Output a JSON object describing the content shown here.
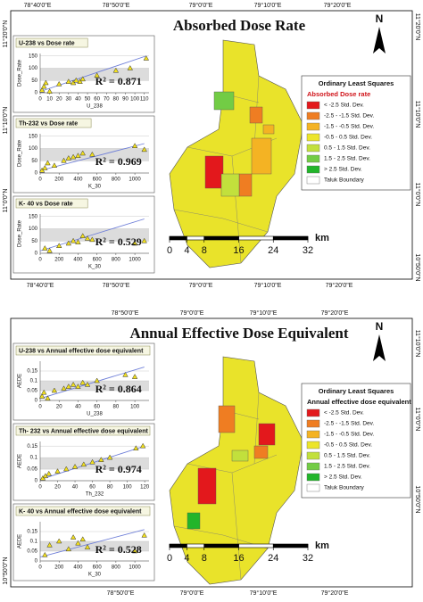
{
  "panels": [
    {
      "title": "Absorbed Dose Rate",
      "top_lon": [
        "78°40'0\"E",
        "78°50'0\"E",
        "79°0'0\"E",
        "79°10'0\"E",
        "79°20'0\"E"
      ],
      "bottom_lon": [
        "78°40'0\"E",
        "78°50'0\"E",
        "79°0'0\"E",
        "79°10'0\"E",
        "79°20'0\"E"
      ],
      "left_lat": [
        "11°20'0\"N",
        "11°10'0\"N",
        "11°0'0\"N"
      ],
      "right_lat": [
        "11°20'0\"N",
        "11°10'0\"N",
        "11°0'0\"N",
        "10°50'0\"N"
      ],
      "north": "N",
      "legend": {
        "title": "Ordinary Least Squares",
        "subtitle": "Absorbed Dose rate",
        "items": [
          {
            "label": "< -2.5 Std. Dev.",
            "color": "#e3181c"
          },
          {
            "label": "-2.5 - -1.5 Std. Dev.",
            "color": "#ef7d22"
          },
          {
            "label": "-1.5 - -0.5 Std. Dev.",
            "color": "#f4b323"
          },
          {
            "label": "-0.5 - 0.5 Std. Dev.",
            "color": "#ece52a"
          },
          {
            "label": "0.5 - 1.5 Std. Dev.",
            "color": "#c2e03c"
          },
          {
            "label": "1.5 - 2.5 Std. Dev.",
            "color": "#72cc45"
          },
          {
            "label": "> 2.5 Std. Dev.",
            "color": "#22b52a"
          },
          {
            "label": "Taluk Boundary",
            "color": "#ffffff"
          }
        ]
      },
      "scale": {
        "ticks": [
          0,
          4,
          8,
          16,
          24,
          32
        ],
        "unit": "km"
      },
      "insets": [
        {
          "title": "U-238 vs Dose rate",
          "x_label": "U_238",
          "y_label": "Dose_Rate",
          "r2": "R² = 0.871",
          "xlim": [
            0,
            115
          ],
          "ylim": [
            0,
            160
          ],
          "xticks": [
            0,
            10,
            20,
            30,
            40,
            50,
            60,
            70,
            80,
            90,
            100,
            110
          ],
          "yticks": [
            0,
            50,
            100,
            150
          ],
          "points": {
            "x": [
              2,
              4,
              6,
              10,
              20,
              30,
              35,
              38,
              42,
              45,
              60,
              80,
              95,
              112
            ],
            "y": [
              10,
              25,
              40,
              5,
              35,
              45,
              40,
              50,
              45,
              55,
              70,
              90,
              100,
              140
            ]
          },
          "fit": {
            "x": [
              0,
              112
            ],
            "y": [
              5,
              150
            ]
          }
        },
        {
          "title": "Th-232 vs Dose rate",
          "x_label": "K_30",
          "y_label": "Dose_Rate",
          "r2": "R² = 0.969",
          "xlim": [
            0,
            1150
          ],
          "ylim": [
            0,
            160
          ],
          "xticks": [
            0,
            200,
            400,
            600,
            800,
            1000
          ],
          "yticks": [
            0,
            50,
            100,
            150
          ],
          "points": {
            "x": [
              20,
              50,
              80,
              150,
              250,
              300,
              350,
              400,
              450,
              550,
              1000,
              1100
            ],
            "y": [
              10,
              20,
              40,
              30,
              50,
              60,
              65,
              70,
              80,
              75,
              110,
              95
            ]
          },
          "fit": {
            "x": [
              0,
              1100
            ],
            "y": [
              10,
              120
            ]
          }
        },
        {
          "title": "K- 40 vs Dose rate",
          "x_label": "K_30",
          "y_label": "Dose_Rate",
          "r2": "R² = 0.529",
          "xlim": [
            0,
            1150
          ],
          "ylim": [
            0,
            160
          ],
          "xticks": [
            0,
            200,
            400,
            600,
            800,
            1000
          ],
          "yticks": [
            0,
            50,
            100,
            150
          ],
          "points": {
            "x": [
              50,
              100,
              200,
              300,
              350,
              400,
              450,
              500,
              550,
              1000,
              1100
            ],
            "y": [
              20,
              10,
              30,
              40,
              50,
              45,
              70,
              60,
              55,
              40,
              50
            ]
          },
          "fit": {
            "x": [
              0,
              1100
            ],
            "y": [
              10,
              140
            ]
          }
        }
      ]
    },
    {
      "title": "Annual Effective Dose Equivalent",
      "top_lon": [
        "78°50'0\"E",
        "79°0'0\"E",
        "79°10'0\"E",
        "79°20'0\"E"
      ],
      "bottom_lon": [
        "78°50'0\"E",
        "79°0'0\"E",
        "79°10'0\"E",
        "79°20'0\"E"
      ],
      "left_lat": [
        "10°50'0\"N"
      ],
      "right_lat": [
        "11°10'0\"N",
        "11°0'0\"N",
        "10°50'0\"N"
      ],
      "north": "N",
      "legend": {
        "title": "Ordinary Least Squares",
        "subtitle": "Annual effective dose equivalent",
        "items": [
          {
            "label": "< -2.5 Std. Dev.",
            "color": "#e3181c"
          },
          {
            "label": "-2.5 - -1.5 Std. Dev.",
            "color": "#ef7d22"
          },
          {
            "label": "-1.5 - -0.5 Std. Dev.",
            "color": "#f4b323"
          },
          {
            "label": "-0.5 - 0.5 Std. Dev.",
            "color": "#ece52a"
          },
          {
            "label": "0.5 - 1.5 Std. Dev.",
            "color": "#c2e03c"
          },
          {
            "label": "1.5 - 2.5 Std. Dev.",
            "color": "#72cc45"
          },
          {
            "label": "> 2.5 Std. Dev.",
            "color": "#22b52a"
          },
          {
            "label": "Taluk Boundary",
            "color": "#ffffff"
          }
        ]
      },
      "scale": {
        "ticks": [
          0,
          4,
          8,
          16,
          24,
          32
        ],
        "unit": "km"
      },
      "insets": [
        {
          "title": "U-238 vs Annual effective dose equivalent",
          "x_label": "U_238",
          "y_label": "AEDE",
          "r2": "R² = 0.864",
          "xlim": [
            0,
            115
          ],
          "ylim": [
            0,
            0.2
          ],
          "xticks": [
            0,
            20,
            40,
            60,
            80,
            100
          ],
          "yticks": [
            0,
            0.05,
            0.1,
            0.15
          ],
          "points": {
            "x": [
              2,
              4,
              8,
              15,
              25,
              30,
              35,
              40,
              45,
              50,
              60,
              90,
              100
            ],
            "y": [
              0.02,
              0.04,
              0.01,
              0.05,
              0.06,
              0.07,
              0.08,
              0.07,
              0.09,
              0.08,
              0.1,
              0.13,
              0.12
            ]
          },
          "fit": {
            "x": [
              0,
              110
            ],
            "y": [
              0.01,
              0.17
            ]
          }
        },
        {
          "title": "Th- 232 vs Annual effective dose equivalent",
          "x_label": "Th_232",
          "y_label": "AEDE",
          "r2": "R² = 0.974",
          "xlim": [
            0,
            125
          ],
          "ylim": [
            0,
            0.17
          ],
          "xticks": [
            0,
            20,
            40,
            60,
            80,
            100,
            120
          ],
          "yticks": [
            0,
            0.05,
            0.1,
            0.15
          ],
          "points": {
            "x": [
              3,
              6,
              10,
              20,
              30,
              40,
              50,
              60,
              70,
              80,
              110,
              118
            ],
            "y": [
              0.01,
              0.02,
              0.03,
              0.04,
              0.05,
              0.06,
              0.07,
              0.08,
              0.09,
              0.1,
              0.14,
              0.15
            ]
          },
          "fit": {
            "x": [
              0,
              120
            ],
            "y": [
              0.005,
              0.15
            ]
          }
        },
        {
          "title": "K- 40 vs Annual effective dose equivalent",
          "x_label": "K_30",
          "y_label": "AEDE",
          "r2": "R² = 0.528",
          "xlim": [
            0,
            1150
          ],
          "ylim": [
            0,
            0.2
          ],
          "xticks": [
            0,
            200,
            400,
            600,
            800,
            1000
          ],
          "yticks": [
            0,
            0.05,
            0.1,
            0.15
          ],
          "points": {
            "x": [
              50,
              100,
              200,
              300,
              350,
              400,
              450,
              500,
              1000,
              1100
            ],
            "y": [
              0.03,
              0.08,
              0.1,
              0.06,
              0.12,
              0.09,
              0.11,
              0.07,
              0.05,
              0.13
            ]
          },
          "fit": {
            "x": [
              0,
              1100
            ],
            "y": [
              0.02,
              0.16
            ]
          }
        }
      ]
    }
  ]
}
